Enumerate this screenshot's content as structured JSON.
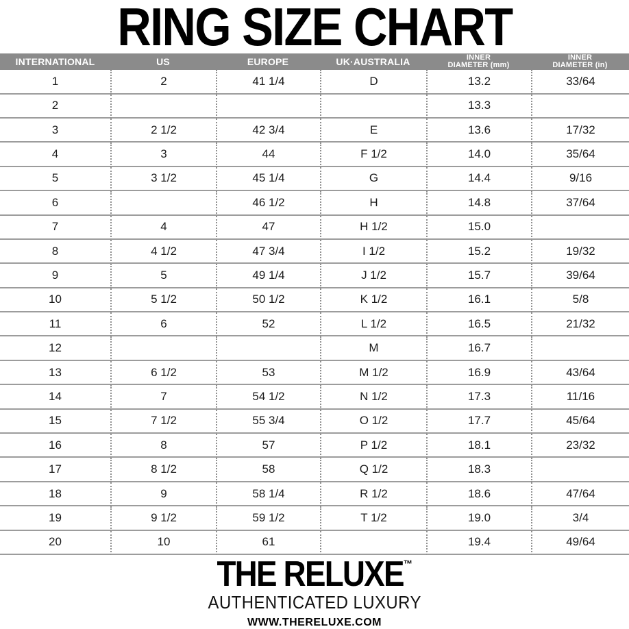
{
  "chart_data": {
    "type": "table",
    "title": "RING SIZE CHART",
    "columns": [
      {
        "line1": "INTERNATIONAL",
        "line2": ""
      },
      {
        "line1": "US",
        "line2": ""
      },
      {
        "line1": "EUROPE",
        "line2": ""
      },
      {
        "line1": "UK·AUSTRALIA",
        "line2": ""
      },
      {
        "line1": "INNER",
        "line2": "DIAMETER (mm)"
      },
      {
        "line1": "INNER",
        "line2": "DIAMETER (in)"
      }
    ],
    "rows": [
      [
        "1",
        "2",
        "41 1/4",
        "D",
        "13.2",
        "33/64"
      ],
      [
        "2",
        "",
        "",
        "",
        "13.3",
        ""
      ],
      [
        "3",
        "2 1/2",
        "42 3/4",
        "E",
        "13.6",
        "17/32"
      ],
      [
        "4",
        "3",
        "44",
        "F 1/2",
        "14.0",
        "35/64"
      ],
      [
        "5",
        "3 1/2",
        "45 1/4",
        "G",
        "14.4",
        "9/16"
      ],
      [
        "6",
        "",
        "46 1/2",
        "H",
        "14.8",
        "37/64"
      ],
      [
        "7",
        "4",
        "47",
        "H 1/2",
        "15.0",
        ""
      ],
      [
        "8",
        "4 1/2",
        "47 3/4",
        "I 1/2",
        "15.2",
        "19/32"
      ],
      [
        "9",
        "5",
        "49 1/4",
        "J 1/2",
        "15.7",
        "39/64"
      ],
      [
        "10",
        "5 1/2",
        "50 1/2",
        "K 1/2",
        "16.1",
        "5/8"
      ],
      [
        "11",
        "6",
        "52",
        "L 1/2",
        "16.5",
        "21/32"
      ],
      [
        "12",
        "",
        "",
        "M",
        "16.7",
        ""
      ],
      [
        "13",
        "6 1/2",
        "53",
        "M 1/2",
        "16.9",
        "43/64"
      ],
      [
        "14",
        "7",
        "54 1/2",
        "N 1/2",
        "17.3",
        "11/16"
      ],
      [
        "15",
        "7 1/2",
        "55 3/4",
        "O 1/2",
        "17.7",
        "45/64"
      ],
      [
        "16",
        "8",
        "57",
        "P 1/2",
        "18.1",
        "23/32"
      ],
      [
        "17",
        "8 1/2",
        "58",
        "Q 1/2",
        "18.3",
        ""
      ],
      [
        "18",
        "9",
        "58 1/4",
        "R 1/2",
        "18.6",
        "47/64"
      ],
      [
        "19",
        "9 1/2",
        "59 1/2",
        "T 1/2",
        "19.0",
        "3/4"
      ],
      [
        "20",
        "10",
        "61",
        "",
        "19.4",
        "49/64"
      ]
    ]
  },
  "footer": {
    "brand": "THE RELUXE",
    "trademark": "™",
    "tagline": "AUTHENTICATED LUXURY",
    "website": "WWW.THERELUXE.COM"
  },
  "colors": {
    "header_bg": "#8b8b8b",
    "header_text": "#ffffff",
    "row_line": "#9c9c9c",
    "dotted_line": "#8f8f8f",
    "text": "#1b1b1b"
  }
}
